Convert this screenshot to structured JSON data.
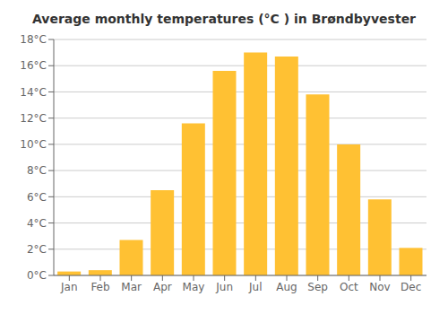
{
  "chart_data": {
    "type": "bar",
    "title": "Average monthly temperatures (°C ) in Brøndbyvester",
    "categories": [
      "Jan",
      "Feb",
      "Mar",
      "Apr",
      "May",
      "Jun",
      "Jul",
      "Aug",
      "Sep",
      "Oct",
      "Nov",
      "Dec"
    ],
    "values": [
      0.3,
      0.4,
      2.7,
      6.5,
      11.6,
      15.6,
      17.0,
      16.7,
      13.8,
      10.0,
      5.8,
      2.1
    ],
    "color": "#FFC133",
    "ylim": [
      0,
      18
    ],
    "yticks": [
      {
        "value": 0,
        "label": "0°C"
      },
      {
        "value": 2,
        "label": "2°C"
      },
      {
        "value": 4,
        "label": "4°C"
      },
      {
        "value": 6,
        "label": "6°C"
      },
      {
        "value": 8,
        "label": "8°C"
      },
      {
        "value": 10,
        "label": "10°C"
      },
      {
        "value": 12,
        "label": "12°C"
      },
      {
        "value": 14,
        "label": "14°C"
      },
      {
        "value": 16,
        "label": "16°C"
      },
      {
        "value": 18,
        "label": "18°C"
      }
    ],
    "grid": true
  }
}
